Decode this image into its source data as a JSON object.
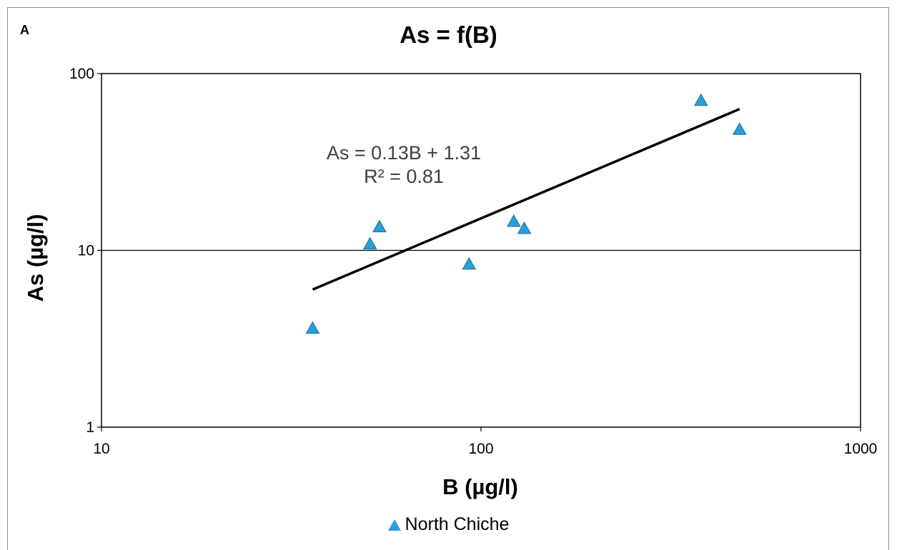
{
  "panel_label": "A",
  "chart_data": {
    "type": "scatter",
    "title": "As = f(B)",
    "xlabel": "B (µg/l)",
    "ylabel": "As (µg/l)",
    "xscale": "log",
    "yscale": "log",
    "xlim": [
      10,
      1000
    ],
    "ylim": [
      1,
      100
    ],
    "xticks": [
      "10",
      "100",
      "1000"
    ],
    "yticks": [
      "1",
      "10",
      "100"
    ],
    "grid": "horizontal at 10",
    "legend_position": "bottom",
    "series": [
      {
        "name": "North Chiche",
        "color": "#2a9fd6",
        "marker": "triangle",
        "points": [
          {
            "x": 36,
            "y": 3.6
          },
          {
            "x": 51,
            "y": 10.8
          },
          {
            "x": 54,
            "y": 13.5
          },
          {
            "x": 93,
            "y": 8.3
          },
          {
            "x": 122,
            "y": 14.5
          },
          {
            "x": 130,
            "y": 13.2
          },
          {
            "x": 380,
            "y": 70
          },
          {
            "x": 480,
            "y": 48
          }
        ]
      }
    ],
    "trendline": {
      "equation": "As = 0.13B + 1.31",
      "r2": "R² = 0.81",
      "from": {
        "x": 36,
        "y": 6.0
      },
      "to": {
        "x": 480,
        "y": 63
      }
    }
  }
}
